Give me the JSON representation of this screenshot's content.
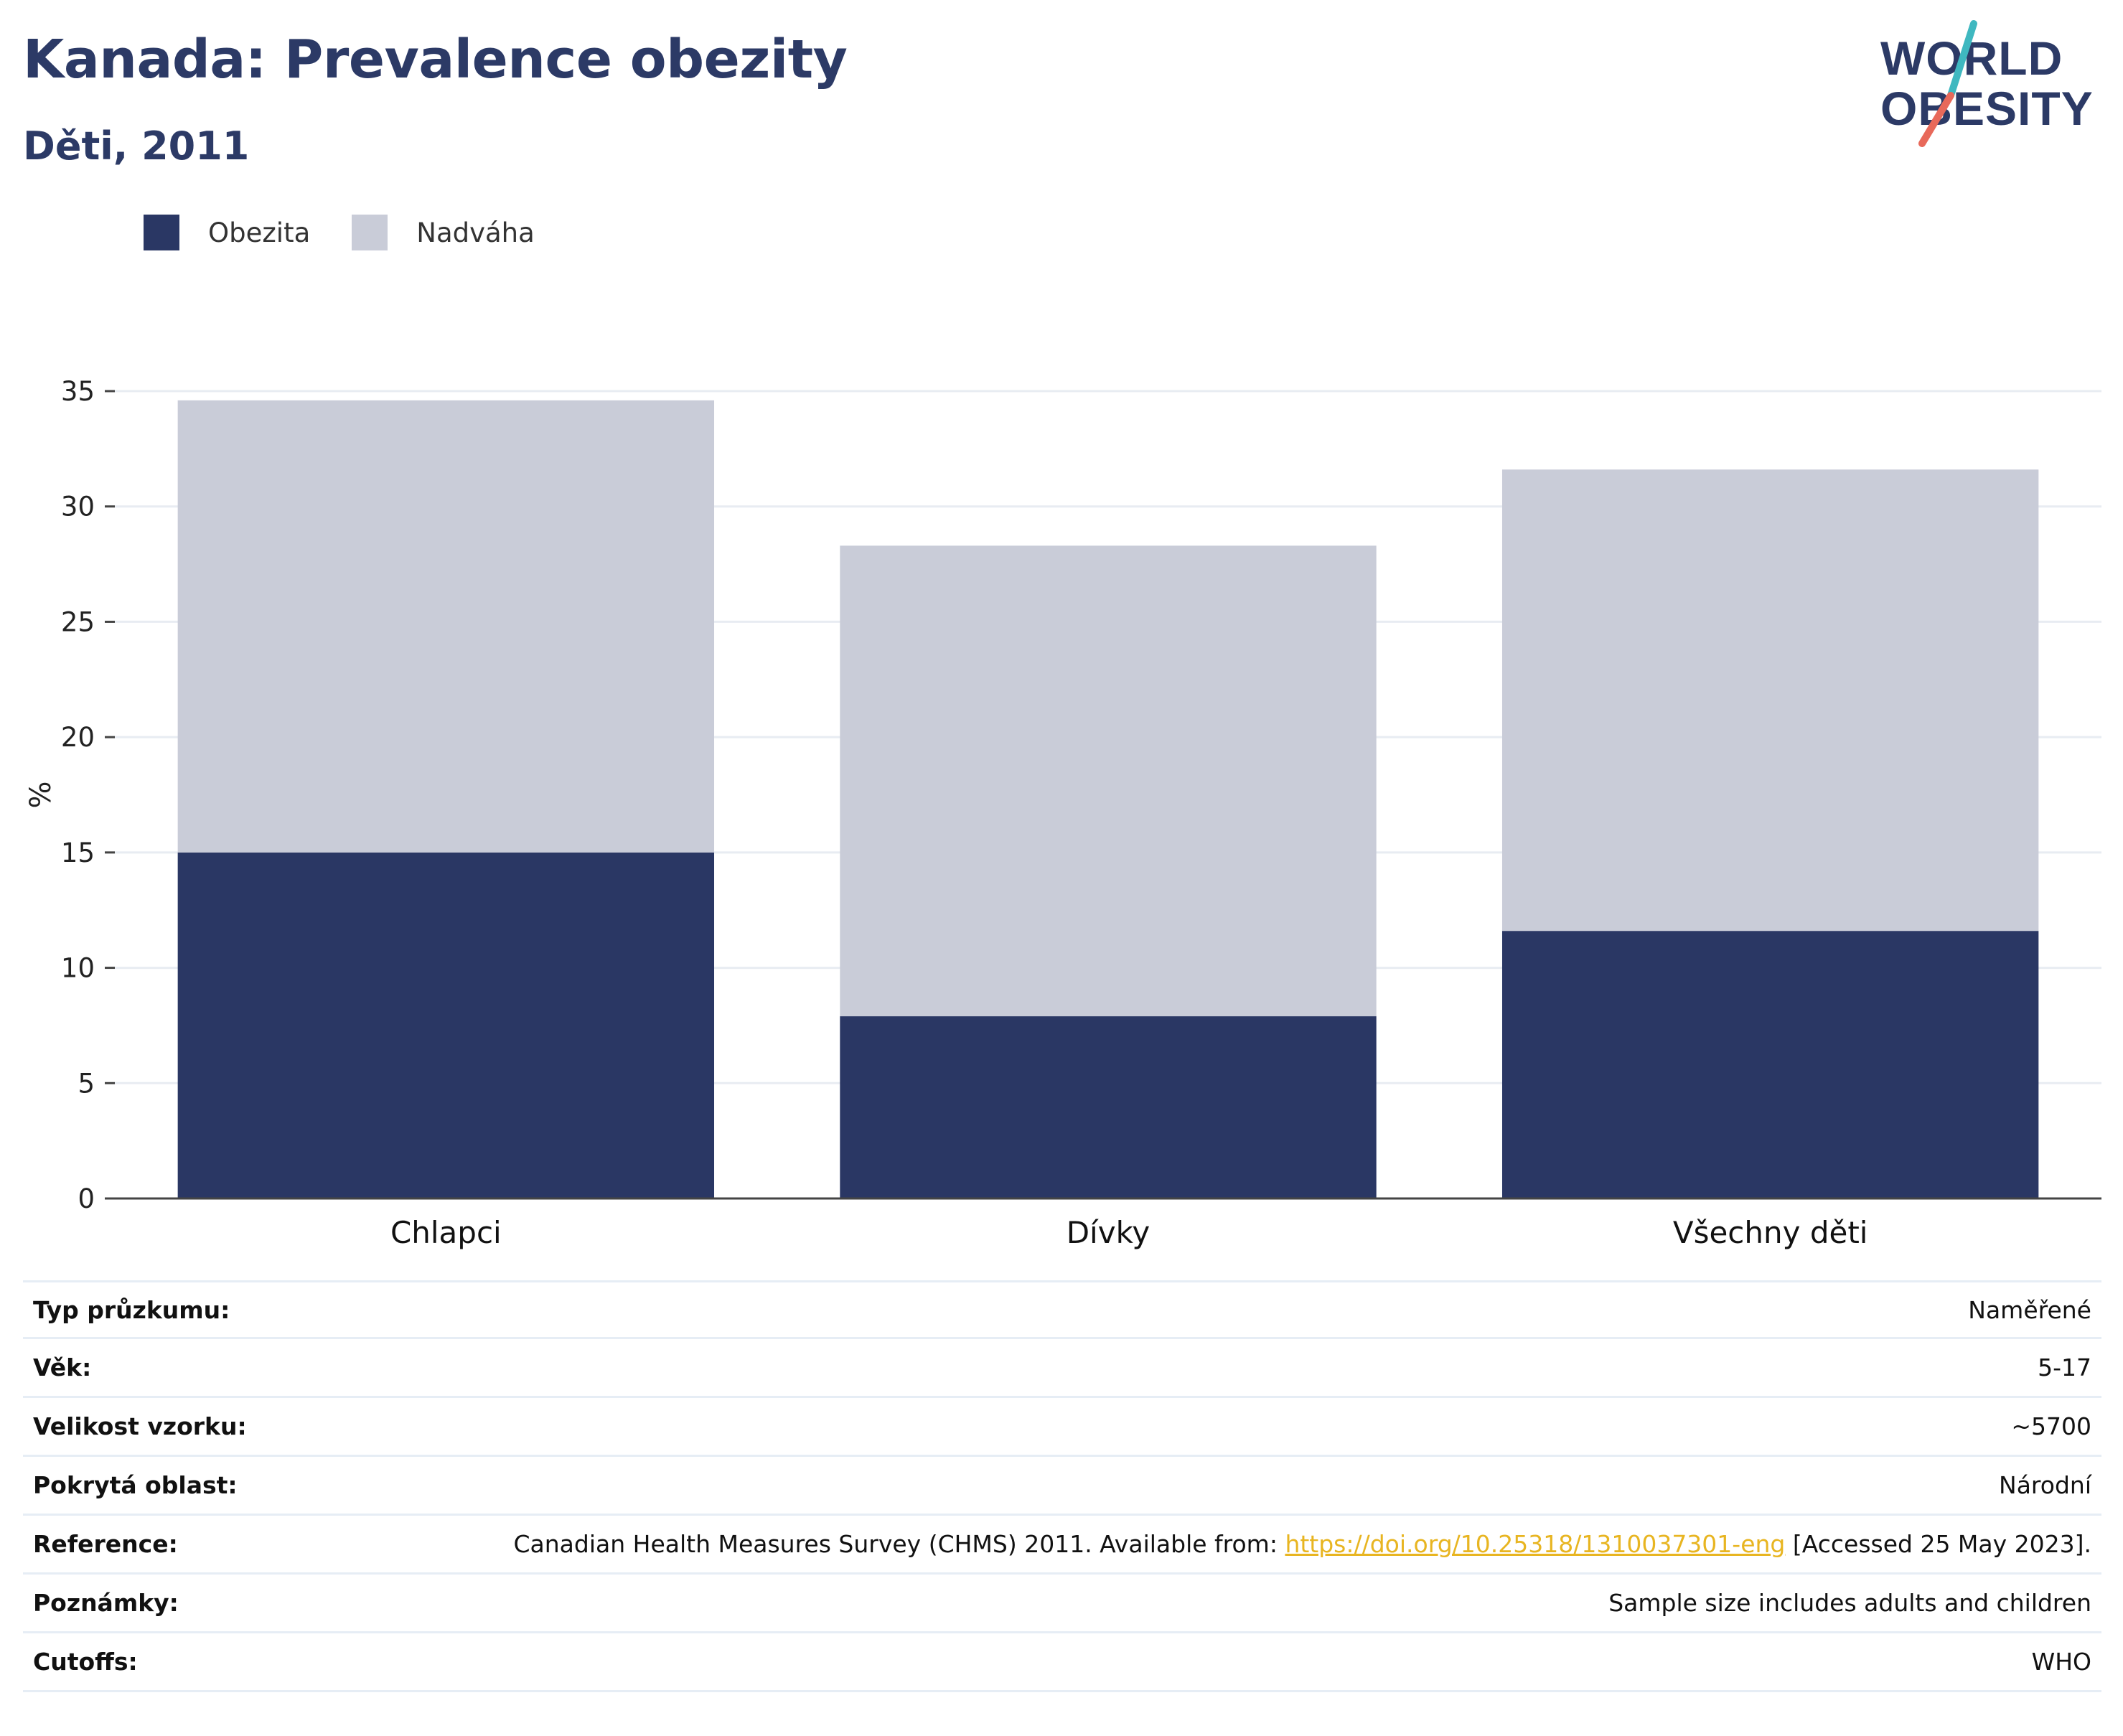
{
  "header": {
    "title": "Kanada: Prevalence obezity",
    "subtitle": "Děti, 2011"
  },
  "logo": {
    "line1": "WORLD",
    "line2": "OBESITY",
    "slash_colors": [
      "#3fb8c0",
      "#e8695a"
    ]
  },
  "colors": {
    "obesity": "#2a3764",
    "overweight": "#c9ccd8",
    "title": "#2c3a66",
    "link": "#e8b521"
  },
  "legend": {
    "items": [
      {
        "label": "Obezita",
        "color": "#2a3764"
      },
      {
        "label": "Nadváha",
        "color": "#c9ccd8"
      }
    ]
  },
  "chart_data": {
    "type": "bar",
    "stacked": true,
    "categories": [
      "Chlapci",
      "Dívky",
      "Všechny děti"
    ],
    "series": [
      {
        "name": "Obezita",
        "values": [
          15.0,
          7.9,
          11.6
        ]
      },
      {
        "name": "Nadváha",
        "values": [
          19.6,
          20.4,
          20.0
        ]
      }
    ],
    "ylabel": "%",
    "xlabel": "",
    "ylim": [
      0,
      35
    ],
    "yticks": [
      0,
      5,
      10,
      15,
      20,
      25,
      30,
      35
    ],
    "grid": true,
    "legend_position": "top-left"
  },
  "info": {
    "rows": [
      {
        "label": "Typ průzkumu:",
        "value": "Naměřené"
      },
      {
        "label": "Věk:",
        "value": "5-17"
      },
      {
        "label": "Velikost vzorku:",
        "value": "~5700"
      },
      {
        "label": "Pokrytá oblast:",
        "value": "Národní"
      }
    ],
    "reference": {
      "label": "Reference:",
      "prefix": "Canadian Health Measures Survey (CHMS) 2011. Available from: ",
      "link": "https://doi.org/10.25318/1310037301-eng",
      "suffix": " [Accessed 25 May 2023]."
    },
    "rows_after": [
      {
        "label": "Poznámky:",
        "value": "Sample size includes adults and children"
      },
      {
        "label": "Cutoffs:",
        "value": "WHO"
      }
    ]
  }
}
